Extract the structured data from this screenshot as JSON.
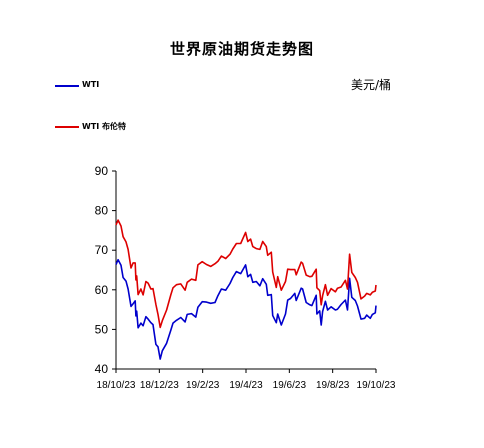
{
  "chart_data": {
    "type": "line",
    "title": "世界原油期货走势图",
    "unit": "美元/桶",
    "x_ticks": [
      "18/10/23",
      "18/12/23",
      "19/2/23",
      "19/4/23",
      "19/6/23",
      "19/8/23",
      "19/10/23"
    ],
    "x_range": [
      "2018-10-23",
      "2019-10-23"
    ],
    "ylim": [
      40,
      90
    ],
    "y_ticks": [
      40,
      50,
      60,
      70,
      80,
      90
    ],
    "grid": false,
    "legend_position": "top-left",
    "series": [
      {
        "name": "WTI",
        "color": "#0000cc",
        "points": [
          [
            "2018-10-23",
            66.4
          ],
          [
            "2018-10-26",
            67.6
          ],
          [
            "2018-10-30",
            66.2
          ],
          [
            "2018-11-02",
            63.1
          ],
          [
            "2018-11-06",
            62.2
          ],
          [
            "2018-11-09",
            60.2
          ],
          [
            "2018-11-13",
            55.8
          ],
          [
            "2018-11-16",
            56.5
          ],
          [
            "2018-11-19",
            57.2
          ],
          [
            "2018-11-20",
            53.4
          ],
          [
            "2018-11-21",
            54.6
          ],
          [
            "2018-11-23",
            50.4
          ],
          [
            "2018-11-27",
            51.6
          ],
          [
            "2018-11-30",
            50.9
          ],
          [
            "2018-12-04",
            53.2
          ],
          [
            "2018-12-07",
            52.6
          ],
          [
            "2018-12-11",
            51.7
          ],
          [
            "2018-12-14",
            51.2
          ],
          [
            "2018-12-18",
            46.2
          ],
          [
            "2018-12-21",
            45.6
          ],
          [
            "2018-12-24",
            42.5
          ],
          [
            "2018-12-27",
            44.6
          ],
          [
            "2019-01-02",
            46.5
          ],
          [
            "2019-01-08",
            49.8
          ],
          [
            "2019-01-11",
            51.6
          ],
          [
            "2019-01-16",
            52.3
          ],
          [
            "2019-01-22",
            53.0
          ],
          [
            "2019-01-28",
            51.9
          ],
          [
            "2019-01-31",
            53.8
          ],
          [
            "2019-02-06",
            54.0
          ],
          [
            "2019-02-12",
            53.1
          ],
          [
            "2019-02-15",
            55.6
          ],
          [
            "2019-02-21",
            57.0
          ],
          [
            "2019-02-27",
            56.9
          ],
          [
            "2019-03-05",
            56.6
          ],
          [
            "2019-03-11",
            56.8
          ],
          [
            "2019-03-15",
            58.5
          ],
          [
            "2019-03-20",
            60.2
          ],
          [
            "2019-03-26",
            59.9
          ],
          [
            "2019-04-01",
            61.6
          ],
          [
            "2019-04-05",
            63.1
          ],
          [
            "2019-04-10",
            64.6
          ],
          [
            "2019-04-16",
            64.1
          ],
          [
            "2019-04-23",
            66.3
          ],
          [
            "2019-04-26",
            63.3
          ],
          [
            "2019-04-30",
            63.9
          ],
          [
            "2019-05-03",
            61.9
          ],
          [
            "2019-05-08",
            62.1
          ],
          [
            "2019-05-13",
            61.0
          ],
          [
            "2019-05-17",
            62.8
          ],
          [
            "2019-05-22",
            61.4
          ],
          [
            "2019-05-24",
            58.6
          ],
          [
            "2019-05-29",
            58.8
          ],
          [
            "2019-05-31",
            53.5
          ],
          [
            "2019-06-05",
            51.7
          ],
          [
            "2019-06-07",
            53.9
          ],
          [
            "2019-06-12",
            51.1
          ],
          [
            "2019-06-18",
            53.9
          ],
          [
            "2019-06-21",
            57.4
          ],
          [
            "2019-06-25",
            57.8
          ],
          [
            "2019-07-01",
            59.1
          ],
          [
            "2019-07-03",
            57.3
          ],
          [
            "2019-07-10",
            60.4
          ],
          [
            "2019-07-12",
            60.2
          ],
          [
            "2019-07-17",
            56.8
          ],
          [
            "2019-07-22",
            56.2
          ],
          [
            "2019-07-25",
            56.0
          ],
          [
            "2019-07-31",
            58.6
          ],
          [
            "2019-08-01",
            53.9
          ],
          [
            "2019-08-05",
            54.7
          ],
          [
            "2019-08-07",
            51.1
          ],
          [
            "2019-08-09",
            54.5
          ],
          [
            "2019-08-13",
            57.1
          ],
          [
            "2019-08-16",
            54.9
          ],
          [
            "2019-08-21",
            55.7
          ],
          [
            "2019-08-27",
            54.9
          ],
          [
            "2019-08-30",
            55.1
          ],
          [
            "2019-09-04",
            56.3
          ],
          [
            "2019-09-10",
            57.4
          ],
          [
            "2019-09-13",
            54.9
          ],
          [
            "2019-09-16",
            62.9
          ],
          [
            "2019-09-19",
            58.1
          ],
          [
            "2019-09-24",
            57.3
          ],
          [
            "2019-09-27",
            55.9
          ],
          [
            "2019-10-02",
            52.6
          ],
          [
            "2019-10-07",
            52.8
          ],
          [
            "2019-10-10",
            53.6
          ],
          [
            "2019-10-15",
            52.8
          ],
          [
            "2019-10-18",
            53.8
          ],
          [
            "2019-10-22",
            54.2
          ],
          [
            "2019-10-23",
            56.0
          ]
        ]
      },
      {
        "name": "WTI 布伦特",
        "color": "#dd0000",
        "points": [
          [
            "2018-10-23",
            76.4
          ],
          [
            "2018-10-26",
            77.6
          ],
          [
            "2018-10-30",
            76.1
          ],
          [
            "2018-11-02",
            73.4
          ],
          [
            "2018-11-06",
            72.1
          ],
          [
            "2018-11-09",
            70.2
          ],
          [
            "2018-11-13",
            65.5
          ],
          [
            "2018-11-16",
            66.8
          ],
          [
            "2018-11-19",
            66.8
          ],
          [
            "2018-11-20",
            62.5
          ],
          [
            "2018-11-21",
            63.5
          ],
          [
            "2018-11-23",
            58.8
          ],
          [
            "2018-11-27",
            60.2
          ],
          [
            "2018-11-30",
            58.7
          ],
          [
            "2018-12-04",
            62.1
          ],
          [
            "2018-12-07",
            61.7
          ],
          [
            "2018-12-11",
            60.2
          ],
          [
            "2018-12-14",
            60.3
          ],
          [
            "2018-12-18",
            56.3
          ],
          [
            "2018-12-21",
            53.8
          ],
          [
            "2018-12-24",
            50.5
          ],
          [
            "2018-12-27",
            52.2
          ],
          [
            "2019-01-02",
            54.9
          ],
          [
            "2019-01-08",
            58.7
          ],
          [
            "2019-01-11",
            60.5
          ],
          [
            "2019-01-16",
            61.3
          ],
          [
            "2019-01-22",
            61.5
          ],
          [
            "2019-01-28",
            59.9
          ],
          [
            "2019-01-31",
            61.9
          ],
          [
            "2019-02-06",
            62.7
          ],
          [
            "2019-02-12",
            62.4
          ],
          [
            "2019-02-15",
            66.3
          ],
          [
            "2019-02-21",
            67.1
          ],
          [
            "2019-02-27",
            66.4
          ],
          [
            "2019-03-05",
            65.9
          ],
          [
            "2019-03-11",
            66.6
          ],
          [
            "2019-03-15",
            67.2
          ],
          [
            "2019-03-20",
            68.5
          ],
          [
            "2019-03-26",
            67.9
          ],
          [
            "2019-04-01",
            69.0
          ],
          [
            "2019-04-05",
            70.3
          ],
          [
            "2019-04-10",
            71.7
          ],
          [
            "2019-04-16",
            71.7
          ],
          [
            "2019-04-23",
            74.5
          ],
          [
            "2019-04-26",
            72.2
          ],
          [
            "2019-04-30",
            72.8
          ],
          [
            "2019-05-03",
            70.9
          ],
          [
            "2019-05-08",
            70.4
          ],
          [
            "2019-05-13",
            70.2
          ],
          [
            "2019-05-17",
            72.2
          ],
          [
            "2019-05-22",
            70.9
          ],
          [
            "2019-05-24",
            68.7
          ],
          [
            "2019-05-29",
            69.5
          ],
          [
            "2019-05-31",
            64.5
          ],
          [
            "2019-06-05",
            60.6
          ],
          [
            "2019-06-07",
            63.3
          ],
          [
            "2019-06-12",
            59.9
          ],
          [
            "2019-06-18",
            62.1
          ],
          [
            "2019-06-21",
            65.2
          ],
          [
            "2019-06-25",
            65.1
          ],
          [
            "2019-07-01",
            65.1
          ],
          [
            "2019-07-03",
            63.8
          ],
          [
            "2019-07-10",
            67.0
          ],
          [
            "2019-07-12",
            66.7
          ],
          [
            "2019-07-17",
            63.7
          ],
          [
            "2019-07-22",
            63.3
          ],
          [
            "2019-07-25",
            63.4
          ],
          [
            "2019-07-31",
            65.2
          ],
          [
            "2019-08-01",
            60.5
          ],
          [
            "2019-08-05",
            59.8
          ],
          [
            "2019-08-07",
            56.2
          ],
          [
            "2019-08-09",
            58.5
          ],
          [
            "2019-08-13",
            61.3
          ],
          [
            "2019-08-16",
            58.6
          ],
          [
            "2019-08-21",
            60.3
          ],
          [
            "2019-08-27",
            59.5
          ],
          [
            "2019-08-30",
            60.4
          ],
          [
            "2019-09-04",
            60.7
          ],
          [
            "2019-09-10",
            62.4
          ],
          [
            "2019-09-13",
            60.2
          ],
          [
            "2019-09-16",
            69.0
          ],
          [
            "2019-09-19",
            64.4
          ],
          [
            "2019-09-24",
            63.1
          ],
          [
            "2019-09-27",
            61.9
          ],
          [
            "2019-10-02",
            57.7
          ],
          [
            "2019-10-07",
            58.4
          ],
          [
            "2019-10-10",
            59.1
          ],
          [
            "2019-10-15",
            58.7
          ],
          [
            "2019-10-18",
            59.4
          ],
          [
            "2019-10-22",
            59.7
          ],
          [
            "2019-10-23",
            61.2
          ]
        ]
      }
    ]
  }
}
